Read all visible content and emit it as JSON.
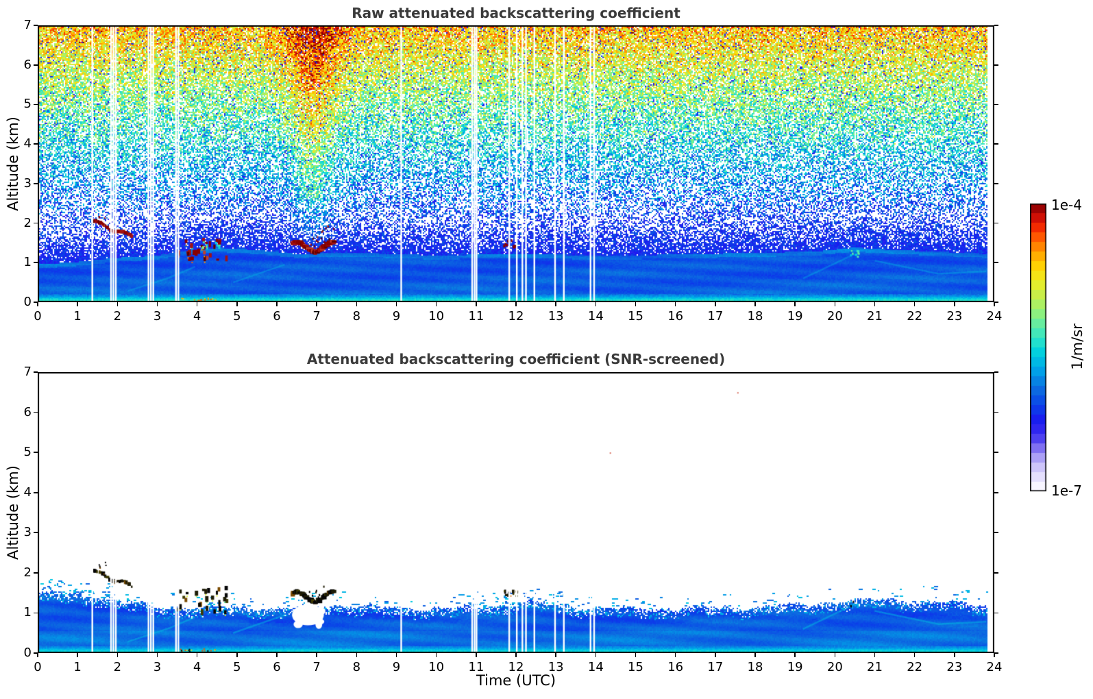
{
  "style": {
    "title_color": "#3a3a3a",
    "axis_color": "#000000",
    "background": "#ffffff"
  },
  "colorbar": {
    "vmax_label": "1e-4",
    "vmin_label": "1e-7",
    "unit": "1/m/sr",
    "steps": 30,
    "stops": [
      [
        0.0,
        "#ffffff"
      ],
      [
        0.03,
        "#f0edff"
      ],
      [
        0.07,
        "#d9d2fb"
      ],
      [
        0.11,
        "#b4aaf7"
      ],
      [
        0.15,
        "#7f70f2"
      ],
      [
        0.19,
        "#4438ef"
      ],
      [
        0.24,
        "#1c17f0"
      ],
      [
        0.3,
        "#0a43e8"
      ],
      [
        0.36,
        "#0c6fe0"
      ],
      [
        0.42,
        "#00a3e8"
      ],
      [
        0.48,
        "#00cfe0"
      ],
      [
        0.53,
        "#2de5c8"
      ],
      [
        0.58,
        "#63eda2"
      ],
      [
        0.63,
        "#9bf272"
      ],
      [
        0.68,
        "#c6ee4b"
      ],
      [
        0.73,
        "#eded22"
      ],
      [
        0.78,
        "#ffd403"
      ],
      [
        0.83,
        "#ffa000"
      ],
      [
        0.88,
        "#ff5b00"
      ],
      [
        0.92,
        "#f12500"
      ],
      [
        0.96,
        "#c40707"
      ],
      [
        1.0,
        "#7f0000"
      ]
    ]
  },
  "chart_data": {
    "type": "heatmap",
    "x_unit": "hours UTC",
    "x_range": [
      0,
      24
    ],
    "y_unit": "altitude km",
    "y_range": [
      0,
      7
    ],
    "value_scale": "log10 attenuated backscatter, colorbar from 1e-7 to 1e-4 1/m/sr",
    "data_end_hour": 23.83,
    "panels": [
      {
        "title": "Raw attenuated backscattering coefficient",
        "ylabel": "Altitude (km)",
        "x_ticks": [
          0,
          1,
          2,
          3,
          4,
          5,
          6,
          7,
          8,
          9,
          10,
          11,
          12,
          13,
          14,
          15,
          16,
          17,
          18,
          19,
          20,
          21,
          22,
          23,
          24
        ],
        "y_ticks": [
          0,
          1,
          2,
          3,
          4,
          5,
          6,
          7
        ],
        "screened": false
      },
      {
        "title": "Attenuated backscattering coefficient (SNR-screened)",
        "ylabel": "Altitude (km)",
        "xlabel": "Time (UTC)",
        "x_ticks": [
          0,
          1,
          2,
          3,
          4,
          5,
          6,
          7,
          8,
          9,
          10,
          11,
          12,
          13,
          14,
          15,
          16,
          17,
          18,
          19,
          20,
          21,
          22,
          23,
          24
        ],
        "y_ticks": [
          0,
          1,
          2,
          3,
          4,
          5,
          6,
          7
        ],
        "screened": true
      }
    ],
    "time_gaps_hours": [
      1.37,
      1.84,
      1.9,
      1.96,
      2.78,
      2.84,
      2.9,
      3.47,
      3.53,
      9.12,
      10.9,
      10.96,
      11.01,
      11.83,
      12.02,
      12.16,
      12.25,
      12.46,
      12.98,
      13.2,
      13.87,
      13.96
    ],
    "boundary_layer_top_km": {
      "hours": [
        0,
        1,
        2,
        3,
        3.6,
        4.5,
        5.5,
        6.5,
        8,
        10,
        12,
        14,
        16,
        18,
        19.5,
        20.5,
        21.5,
        23,
        23.83
      ],
      "raw": [
        0.95,
        1.02,
        1.12,
        1.18,
        1.28,
        1.38,
        1.32,
        1.22,
        1.25,
        1.18,
        1.22,
        1.18,
        1.2,
        1.25,
        1.28,
        1.38,
        1.32,
        1.26,
        1.22
      ],
      "screened_hours": [
        0,
        0.7,
        1.5,
        2.2,
        3,
        4,
        5,
        6,
        6.7,
        7.5,
        9,
        10.5,
        11.5,
        12.2,
        13,
        14,
        15,
        16,
        17,
        18,
        19,
        20,
        20.7,
        21.3,
        22,
        23,
        23.83
      ],
      "screened": [
        1.5,
        1.48,
        1.4,
        1.28,
        1.16,
        1.12,
        1.16,
        1.1,
        1.14,
        1.2,
        1.12,
        1.12,
        1.18,
        1.3,
        1.2,
        1.12,
        1.1,
        1.12,
        1.15,
        1.15,
        1.2,
        1.28,
        1.32,
        1.35,
        1.28,
        1.26,
        1.2
      ]
    },
    "clouds": [
      {
        "kind": "descending_streak",
        "t0": 1.38,
        "t1": 2.36,
        "h_from": 2.04,
        "h_to": 1.66
      },
      {
        "kind": "scattered_cumulus",
        "t0": 3.5,
        "t1": 4.78,
        "h_lo": 1.0,
        "h_hi": 1.62,
        "count": 26
      },
      {
        "kind": "thick_wavy_streak",
        "t0": 6.4,
        "t1": 7.44,
        "h_lo": 1.28,
        "h_hi": 1.52
      },
      {
        "kind": "small_cluster",
        "t0": 11.7,
        "t1": 12.04,
        "h_lo": 1.4,
        "h_hi": 1.58,
        "count": 10
      },
      {
        "kind": "faint_patch",
        "t0": 20.4,
        "t1": 20.62,
        "h_lo": 1.14,
        "h_hi": 1.3,
        "count": 8
      }
    ],
    "solar_noise_plume": {
      "t_center": 6.92,
      "sigma_base": 0.28,
      "sigma_per_km": 0.075,
      "h_min": 1.25,
      "s_boost": 0.22,
      "density_boost": 0.18
    },
    "noise_profile": {
      "seed": 1337,
      "density_base": 0.32,
      "density_gain": 0.58,
      "density_pow": 1.35,
      "haze_density": 0.92,
      "haze_falloff": 0.6,
      "haze_s": 0.27,
      "s_base": 0.3,
      "s_gain": 0.5,
      "s_h0": 2.0,
      "s_span": 5.0,
      "s_jitter": 0.28
    },
    "screened_hole": {
      "t0": 6.38,
      "t1": 7.18,
      "h_center": 0.95,
      "h_half": 0.26
    },
    "surface_specks": {
      "t0": 3.55,
      "t1": 4.45,
      "count": 16
    },
    "isolated_specks": [
      {
        "t": 14.35,
        "h": 5.0
      },
      {
        "t": 17.55,
        "h": 6.5
      }
    ],
    "wisps": [
      [
        [
          2.25,
          0.28
        ],
        [
          3.3,
          0.62
        ],
        [
          3.95,
          0.9
        ]
      ],
      [
        [
          4.9,
          0.5
        ],
        [
          6.2,
          0.95
        ]
      ],
      [
        [
          19.2,
          0.6
        ],
        [
          20.5,
          1.22
        ]
      ],
      [
        [
          21.0,
          1.05
        ],
        [
          22.6,
          0.72
        ],
        [
          23.8,
          0.78
        ]
      ]
    ]
  }
}
